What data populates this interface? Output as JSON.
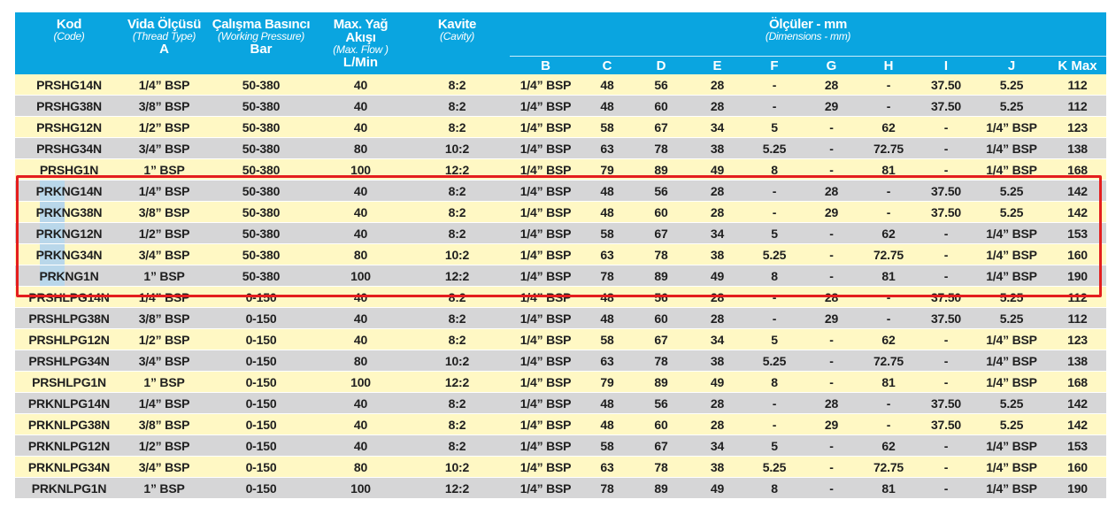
{
  "headers": {
    "code": {
      "title": "Kod",
      "sub": "(Code)",
      "unit": ""
    },
    "thread": {
      "title": "Vida Ölçüsü",
      "sub": "(Thread Type)",
      "unit": "A"
    },
    "pressure": {
      "title": "Çalışma Basıncı",
      "sub": "(Working Pressure)",
      "unit": "Bar"
    },
    "flow": {
      "title": "Max. Yağ Akışı",
      "sub": "(Max. Flow )",
      "unit": "L/Min"
    },
    "cavity": {
      "title": "Kavite",
      "sub": "(Cavity)",
      "unit": ""
    },
    "dims": {
      "title": "Ölçüler - mm",
      "sub": "(Dimensions - mm)"
    },
    "dim_cols": [
      "B",
      "C",
      "D",
      "E",
      "F",
      "G",
      "H",
      "I",
      "J",
      "K Max"
    ]
  },
  "rows": [
    [
      "PRSHG14N",
      "1/4” BSP",
      "50-380",
      "40",
      "8:2",
      "1/4” BSP",
      "48",
      "56",
      "28",
      "-",
      "28",
      "-",
      "37.50",
      "5.25",
      "112"
    ],
    [
      "PRSHG38N",
      "3/8” BSP",
      "50-380",
      "40",
      "8:2",
      "1/4” BSP",
      "48",
      "60",
      "28",
      "-",
      "29",
      "-",
      "37.50",
      "5.25",
      "112"
    ],
    [
      "PRSHG12N",
      "1/2” BSP",
      "50-380",
      "40",
      "8:2",
      "1/4” BSP",
      "58",
      "67",
      "34",
      "5",
      "-",
      "62",
      "-",
      "1/4” BSP",
      "123"
    ],
    [
      "PRSHG34N",
      "3/4” BSP",
      "50-380",
      "80",
      "10:2",
      "1/4” BSP",
      "63",
      "78",
      "38",
      "5.25",
      "-",
      "72.75",
      "-",
      "1/4” BSP",
      "138"
    ],
    [
      "PRSHG1N",
      "1” BSP",
      "50-380",
      "100",
      "12:2",
      "1/4” BSP",
      "79",
      "89",
      "49",
      "8",
      "-",
      "81",
      "-",
      "1/4” BSP",
      "168"
    ],
    [
      "PRKNG14N",
      "1/4” BSP",
      "50-380",
      "40",
      "8:2",
      "1/4” BSP",
      "48",
      "56",
      "28",
      "-",
      "28",
      "-",
      "37.50",
      "5.25",
      "142"
    ],
    [
      "PRKNG38N",
      "3/8” BSP",
      "50-380",
      "40",
      "8:2",
      "1/4” BSP",
      "48",
      "60",
      "28",
      "-",
      "29",
      "-",
      "37.50",
      "5.25",
      "142"
    ],
    [
      "PRKNG12N",
      "1/2” BSP",
      "50-380",
      "40",
      "8:2",
      "1/4” BSP",
      "58",
      "67",
      "34",
      "5",
      "-",
      "62",
      "-",
      "1/4” BSP",
      "153"
    ],
    [
      "PRKNG34N",
      "3/4” BSP",
      "50-380",
      "80",
      "10:2",
      "1/4” BSP",
      "63",
      "78",
      "38",
      "5.25",
      "-",
      "72.75",
      "-",
      "1/4” BSP",
      "160"
    ],
    [
      "PRKNG1N",
      "1” BSP",
      "50-380",
      "100",
      "12:2",
      "1/4” BSP",
      "78",
      "89",
      "49",
      "8",
      "-",
      "81",
      "-",
      "1/4” BSP",
      "190"
    ],
    [
      "PRSHLPG14N",
      "1/4” BSP",
      "0-150",
      "40",
      "8:2",
      "1/4” BSP",
      "48",
      "56",
      "28",
      "-",
      "28",
      "-",
      "37.50",
      "5.25",
      "112"
    ],
    [
      "PRSHLPG38N",
      "3/8” BSP",
      "0-150",
      "40",
      "8:2",
      "1/4” BSP",
      "48",
      "60",
      "28",
      "-",
      "29",
      "-",
      "37.50",
      "5.25",
      "112"
    ],
    [
      "PRSHLPG12N",
      "1/2” BSP",
      "0-150",
      "40",
      "8:2",
      "1/4” BSP",
      "58",
      "67",
      "34",
      "5",
      "-",
      "62",
      "-",
      "1/4” BSP",
      "123"
    ],
    [
      "PRSHLPG34N",
      "3/4” BSP",
      "0-150",
      "80",
      "10:2",
      "1/4” BSP",
      "63",
      "78",
      "38",
      "5.25",
      "-",
      "72.75",
      "-",
      "1/4” BSP",
      "138"
    ],
    [
      "PRSHLPG1N",
      "1” BSP",
      "0-150",
      "100",
      "12:2",
      "1/4” BSP",
      "79",
      "89",
      "49",
      "8",
      "-",
      "81",
      "-",
      "1/4” BSP",
      "168"
    ],
    [
      "PRKNLPG14N",
      "1/4” BSP",
      "0-150",
      "40",
      "8:2",
      "1/4” BSP",
      "48",
      "56",
      "28",
      "-",
      "28",
      "-",
      "37.50",
      "5.25",
      "142"
    ],
    [
      "PRKNLPG38N",
      "3/8” BSP",
      "0-150",
      "40",
      "8:2",
      "1/4” BSP",
      "48",
      "60",
      "28",
      "-",
      "29",
      "-",
      "37.50",
      "5.25",
      "142"
    ],
    [
      "PRKNLPG12N",
      "1/2” BSP",
      "0-150",
      "40",
      "8:2",
      "1/4” BSP",
      "58",
      "67",
      "34",
      "5",
      "-",
      "62",
      "-",
      "1/4” BSP",
      "153"
    ],
    [
      "PRKNLPG34N",
      "3/4” BSP",
      "0-150",
      "80",
      "10:2",
      "1/4” BSP",
      "63",
      "78",
      "38",
      "5.25",
      "-",
      "72.75",
      "-",
      "1/4” BSP",
      "160"
    ],
    [
      "PRKNLPG1N",
      "1” BSP",
      "0-150",
      "100",
      "12:2",
      "1/4” BSP",
      "78",
      "89",
      "49",
      "8",
      "-",
      "81",
      "-",
      "1/4” BSP",
      "190"
    ]
  ],
  "highlighted_rows": [
    5,
    6,
    7,
    8,
    9
  ],
  "colors": {
    "header": "#0aa5e0",
    "row_odd": "#fff8c4",
    "row_even": "#d6d6d7",
    "highlight_box": "#e41e1e"
  }
}
